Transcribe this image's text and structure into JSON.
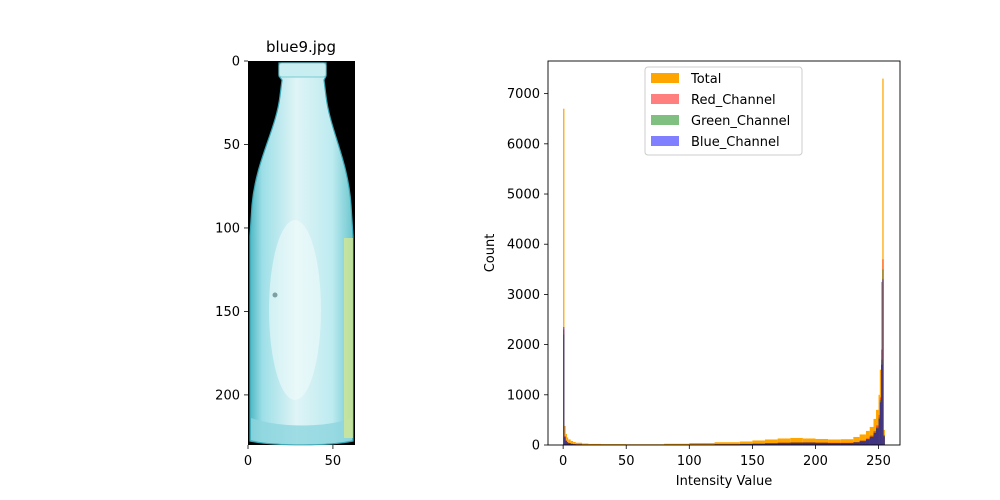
{
  "chart_data": [
    {
      "type": "image",
      "title": "blue9.jpg",
      "xlim": [
        0,
        63
      ],
      "ylim": [
        230,
        0
      ],
      "xticks": [
        0,
        50
      ],
      "yticks": [
        0,
        50,
        100,
        150,
        200
      ],
      "content": "bottle-photo",
      "colors": {
        "background": "#000000",
        "glass": "#a9e3ea",
        "glass_light": "#dff4f6",
        "glass_edge": "#4fb7c4"
      }
    },
    {
      "type": "histogram",
      "title": "",
      "xlabel": "Intensity Value",
      "ylabel": "Count",
      "xlim": [
        -12,
        267
      ],
      "ylim": [
        0,
        7650
      ],
      "xticks": [
        0,
        50,
        100,
        150,
        200,
        250
      ],
      "yticks": [
        0,
        1000,
        2000,
        3000,
        4000,
        5000,
        6000,
        7000
      ],
      "legend_position": "top-center",
      "bins": [
        0,
        1,
        2,
        3,
        4,
        6,
        8,
        10,
        15,
        20,
        30,
        50,
        80,
        100,
        120,
        140,
        150,
        160,
        170,
        180,
        190,
        200,
        210,
        220,
        230,
        235,
        240,
        243,
        246,
        248,
        250,
        251,
        252,
        253,
        254,
        255
      ],
      "series": [
        {
          "name": "Total",
          "color": "#ffa500",
          "alpha": 1.0,
          "values": [
            6700,
            380,
            220,
            150,
            110,
            80,
            60,
            45,
            30,
            22,
            18,
            15,
            25,
            40,
            55,
            70,
            90,
            110,
            130,
            140,
            130,
            120,
            110,
            115,
            160,
            210,
            280,
            360,
            520,
            700,
            1000,
            1500,
            3250,
            7300,
            300
          ]
        },
        {
          "name": "Red_Channel",
          "color": "#ff0000",
          "alpha": 0.5,
          "values": [
            2300,
            180,
            90,
            60,
            40,
            25,
            20,
            15,
            10,
            8,
            6,
            5,
            8,
            12,
            18,
            24,
            30,
            40,
            50,
            55,
            55,
            50,
            45,
            45,
            60,
            90,
            130,
            190,
            280,
            390,
            600,
            950,
            1900,
            3700,
            200
          ]
        },
        {
          "name": "Green_Channel",
          "color": "#008000",
          "alpha": 0.5,
          "values": [
            2200,
            150,
            80,
            50,
            35,
            20,
            15,
            12,
            8,
            6,
            5,
            4,
            7,
            10,
            15,
            20,
            25,
            35,
            45,
            50,
            50,
            45,
            40,
            40,
            55,
            85,
            120,
            170,
            250,
            350,
            550,
            900,
            1700,
            3500,
            180
          ]
        },
        {
          "name": "Blue_Channel",
          "color": "#0000ff",
          "alpha": 0.5,
          "values": [
            2350,
            160,
            85,
            55,
            38,
            22,
            16,
            12,
            8,
            6,
            5,
            4,
            6,
            9,
            12,
            18,
            22,
            30,
            38,
            42,
            45,
            42,
            38,
            38,
            50,
            75,
            110,
            160,
            240,
            330,
            520,
            850,
            1600,
            3300,
            170
          ]
        }
      ]
    }
  ]
}
